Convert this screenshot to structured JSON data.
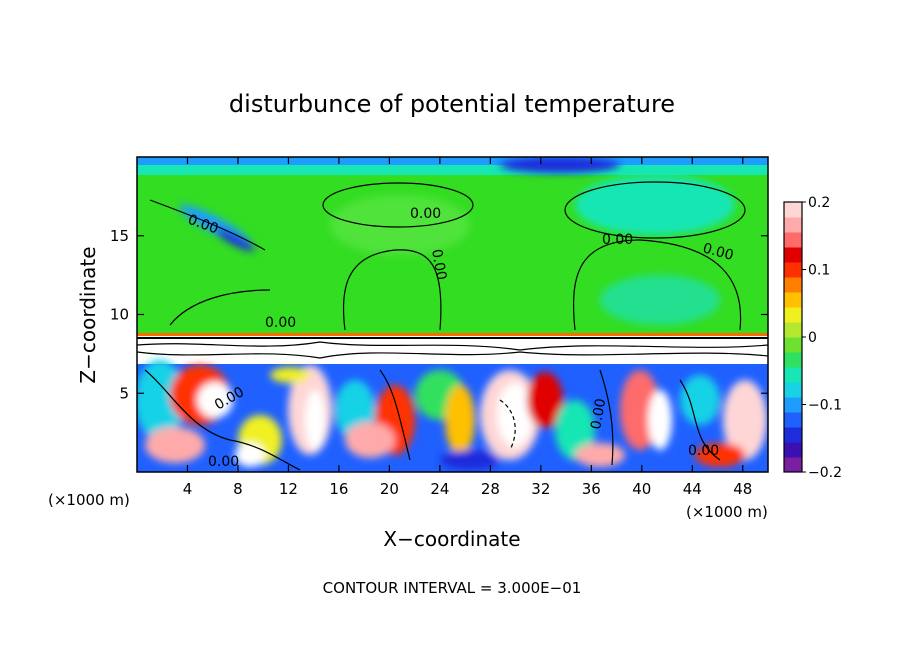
{
  "chart_data": {
    "type": "heatmap",
    "title": "disturbunce of potential temperature",
    "xlabel": "X−coordinate",
    "ylabel": "Z−coordinate",
    "x_unit": "(×1000 m)",
    "x_unit_right": "(×1000 m)",
    "xlim": [
      0,
      50
    ],
    "ylim": [
      0,
      20
    ],
    "x_ticks": [
      4,
      8,
      12,
      16,
      20,
      24,
      28,
      32,
      36,
      40,
      44,
      48
    ],
    "y_ticks": [
      5,
      10,
      15
    ],
    "colorbar": {
      "range": [
        -0.2,
        0.2
      ],
      "tick_values": [
        0.2,
        0.1,
        0,
        -0.1,
        -0.2
      ],
      "tick_labels": [
        "0.2",
        "0.1",
        "0",
        "−0.1",
        "−0.2"
      ],
      "colors": [
        "#7b1fa2",
        "#3a10b0",
        "#1e2cdc",
        "#1f60ff",
        "#1e9dff",
        "#18d2e6",
        "#18e6b4",
        "#30e060",
        "#6ee030",
        "#b4e830",
        "#f0f020",
        "#ffc000",
        "#ff8000",
        "#ff3000",
        "#e00000",
        "#ff6a6a",
        "#ffaaaa",
        "#ffd6d6"
      ]
    },
    "contour_labels": [
      "0.00",
      "0.00",
      "0.00",
      "0.00",
      "0.00",
      "0.00",
      "0.00",
      "0.00",
      "0.00",
      "0.00"
    ],
    "grid": false,
    "footer": "CONTOUR INTERVAL = 3.000E−01"
  }
}
